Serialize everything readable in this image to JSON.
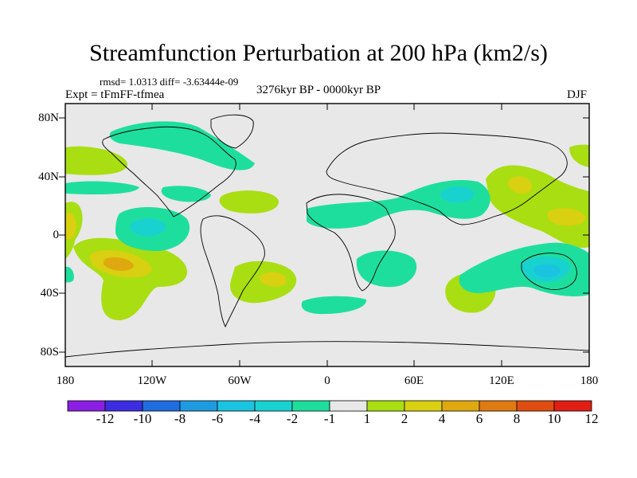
{
  "title": "Streamfunction Perturbation at 200 hPa (km2/s)",
  "stats": "rmsd= 1.0313  diff= -3.63444e-09",
  "experiment": "Expt = tFmFF-tfmea",
  "period": "3276kyr BP - 0000kyr BP",
  "season": "DJF",
  "y_axis_labels": [
    "80N",
    "40N",
    "0",
    "40S",
    "80S"
  ],
  "x_axis_labels": [
    "180",
    "120W",
    "60W",
    "0",
    "60E",
    "120E",
    "180"
  ],
  "colorbar": {
    "labels": [
      "-12",
      "-10",
      "-8",
      "-6",
      "-4",
      "-2",
      "-1",
      "1",
      "2",
      "4",
      "6",
      "8",
      "10",
      "12"
    ],
    "colors": [
      "#8a1fe3",
      "#3c2ee0",
      "#1f6de0",
      "#1e9be0",
      "#1ac4e0",
      "#18d2d0",
      "#1ede9e",
      "#e8e8e8",
      "#a9de12",
      "#d8d010",
      "#e0a810",
      "#e07a12",
      "#e04d12",
      "#e01e14"
    ]
  }
}
